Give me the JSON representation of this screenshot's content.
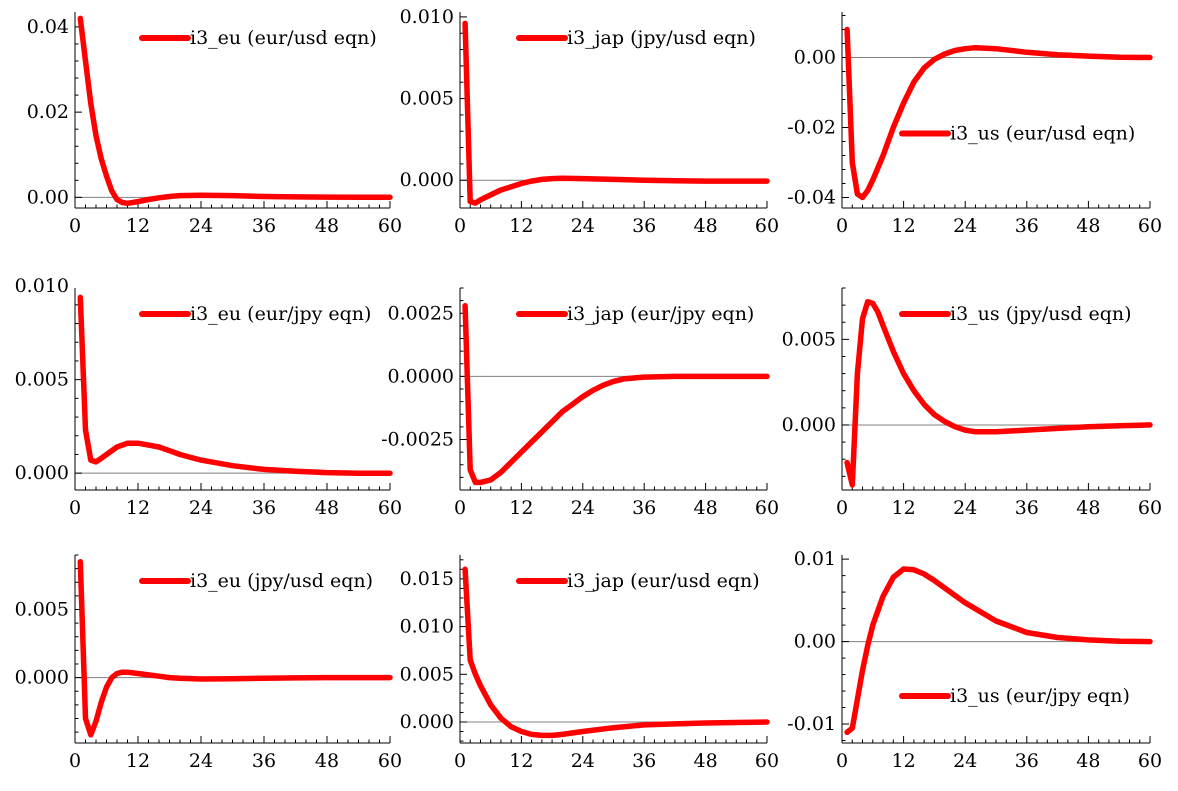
{
  "figure": {
    "series_color": "#ff0000",
    "zero_line_color": "#808080"
  },
  "chart_data": [
    {
      "type": "line",
      "panel_row": 1,
      "panel_col": 1,
      "series": [
        {
          "name": "i3_eu (eur/usd eqn)",
          "x": [
            1,
            2,
            3,
            4,
            5,
            6,
            7,
            8,
            9,
            10,
            12,
            14,
            16,
            18,
            20,
            24,
            30,
            36,
            42,
            48,
            54,
            60
          ],
          "y": [
            0.042,
            0.032,
            0.022,
            0.0145,
            0.009,
            0.005,
            0.0015,
            -0.0005,
            -0.0012,
            -0.0014,
            -0.001,
            -0.0005,
            -0.0001,
            0.0002,
            0.0004,
            0.0005,
            0.0004,
            0.0002,
            0.0001,
            5e-05,
            0.0,
            0.0
          ]
        }
      ],
      "xlim": [
        0,
        60
      ],
      "ylim": [
        -0.0025,
        0.0435
      ],
      "xticks": [
        0,
        12,
        24,
        36,
        48,
        60
      ],
      "xtick_labels": [
        "0",
        "12",
        "24",
        "36",
        "48",
        "60"
      ],
      "yticks": [
        0.0,
        0.02,
        0.04
      ],
      "ytick_labels": [
        "0.00",
        "0.02",
        "0.04"
      ],
      "zero_line": true,
      "legend_position": "top-right"
    },
    {
      "type": "line",
      "panel_row": 1,
      "panel_col": 2,
      "series": [
        {
          "name": "i3_jap (jpy/usd eqn)",
          "x": [
            1,
            2,
            3,
            4,
            6,
            8,
            10,
            12,
            14,
            16,
            18,
            20,
            24,
            30,
            36,
            42,
            48,
            54,
            60
          ],
          "y": [
            0.0096,
            -0.0013,
            -0.0014,
            -0.0012,
            -0.0009,
            -0.0006,
            -0.0004,
            -0.0002,
            -5e-05,
            5e-05,
            0.0001,
            0.00012,
            0.0001,
            5e-05,
            0.0,
            -3e-05,
            -5e-05,
            -5e-05,
            -5e-05
          ]
        }
      ],
      "xlim": [
        0,
        60
      ],
      "ylim": [
        -0.0017,
        0.0103
      ],
      "xticks": [
        0,
        12,
        24,
        36,
        48,
        60
      ],
      "xtick_labels": [
        "0",
        "12",
        "24",
        "36",
        "48",
        "60"
      ],
      "yticks": [
        0.0,
        0.005,
        0.01
      ],
      "ytick_labels": [
        "0.000",
        "0.005",
        "0.010"
      ],
      "zero_line": true,
      "legend_position": "top-right"
    },
    {
      "type": "line",
      "panel_row": 1,
      "panel_col": 3,
      "series": [
        {
          "name": "i3_us (eur/usd eqn)",
          "x": [
            1,
            2,
            3,
            4,
            5,
            6,
            8,
            10,
            12,
            14,
            16,
            18,
            20,
            22,
            24,
            26,
            30,
            36,
            42,
            48,
            54,
            60
          ],
          "y": [
            0.008,
            -0.03,
            -0.039,
            -0.04,
            -0.038,
            -0.035,
            -0.028,
            -0.02,
            -0.013,
            -0.007,
            -0.003,
            -0.0005,
            0.001,
            0.002,
            0.0025,
            0.0028,
            0.0025,
            0.0015,
            0.0008,
            0.0004,
            0.0001,
            0.0
          ]
        }
      ],
      "xlim": [
        0,
        60
      ],
      "ylim": [
        -0.043,
        0.013
      ],
      "xticks": [
        0,
        12,
        24,
        36,
        48,
        60
      ],
      "xtick_labels": [
        "0",
        "12",
        "24",
        "36",
        "48",
        "60"
      ],
      "yticks": [
        -0.04,
        -0.02,
        0.0
      ],
      "ytick_labels": [
        "-0.04",
        "-0.02",
        "0.00"
      ],
      "zero_line": true,
      "legend_position": "middle-right"
    },
    {
      "type": "line",
      "panel_row": 2,
      "panel_col": 1,
      "series": [
        {
          "name": "i3_eu (eur/jpy eqn)",
          "x": [
            1,
            2,
            3,
            4,
            5,
            6,
            8,
            10,
            12,
            14,
            16,
            18,
            20,
            24,
            30,
            36,
            42,
            48,
            54,
            60
          ],
          "y": [
            0.0094,
            0.0023,
            0.0007,
            0.0006,
            0.0008,
            0.001,
            0.0014,
            0.0016,
            0.0016,
            0.0015,
            0.0014,
            0.0012,
            0.001,
            0.0007,
            0.0004,
            0.0002,
            0.0001,
            3e-05,
            0.0,
            0.0
          ]
        }
      ],
      "xlim": [
        0,
        60
      ],
      "ylim": [
        -0.0009,
        0.0099
      ],
      "xticks": [
        0,
        12,
        24,
        36,
        48,
        60
      ],
      "xtick_labels": [
        "0",
        "12",
        "24",
        "36",
        "48",
        "60"
      ],
      "yticks": [
        0.0,
        0.005,
        0.01
      ],
      "ytick_labels": [
        "0.000",
        "0.005",
        "0.010"
      ],
      "zero_line": true,
      "legend_position": "top-right"
    },
    {
      "type": "line",
      "panel_row": 2,
      "panel_col": 2,
      "series": [
        {
          "name": "i3_jap (eur/jpy eqn)",
          "x": [
            1,
            2,
            3,
            4,
            6,
            8,
            10,
            12,
            14,
            16,
            18,
            20,
            22,
            24,
            26,
            28,
            30,
            32,
            36,
            42,
            48,
            54,
            60
          ],
          "y": [
            0.0028,
            -0.0037,
            -0.0042,
            -0.0042,
            -0.0041,
            -0.0038,
            -0.0034,
            -0.003,
            -0.0026,
            -0.0022,
            -0.0018,
            -0.0014,
            -0.0011,
            -0.0008,
            -0.00055,
            -0.00035,
            -0.0002,
            -0.0001,
            -3e-05,
            0.0,
            0.0,
            0.0,
            0.0
          ]
        }
      ],
      "xlim": [
        0,
        60
      ],
      "ylim": [
        -0.0045,
        0.0035
      ],
      "xticks": [
        0,
        12,
        24,
        36,
        48,
        60
      ],
      "xtick_labels": [
        "0",
        "12",
        "24",
        "36",
        "48",
        "60"
      ],
      "yticks": [
        -0.0025,
        0.0,
        0.0025
      ],
      "ytick_labels": [
        "-0.0025",
        "0.0000",
        "0.0025"
      ],
      "zero_line": true,
      "legend_position": "top-right"
    },
    {
      "type": "line",
      "panel_row": 2,
      "panel_col": 3,
      "series": [
        {
          "name": "i3_us (jpy/usd eqn)",
          "x": [
            1,
            2,
            3,
            4,
            5,
            6,
            7,
            8,
            10,
            12,
            14,
            16,
            18,
            20,
            22,
            24,
            26,
            30,
            36,
            42,
            48,
            54,
            60
          ],
          "y": [
            -0.0022,
            -0.0035,
            0.003,
            0.0062,
            0.0072,
            0.0071,
            0.0066,
            0.0058,
            0.0043,
            0.003,
            0.002,
            0.0012,
            0.0006,
            0.0002,
            -0.0001,
            -0.0003,
            -0.0004,
            -0.0004,
            -0.0003,
            -0.0002,
            -0.0001,
            -5e-05,
            0.0
          ]
        }
      ],
      "xlim": [
        0,
        60
      ],
      "ylim": [
        -0.0038,
        0.008
      ],
      "xticks": [
        0,
        12,
        24,
        36,
        48,
        60
      ],
      "xtick_labels": [
        "0",
        "12",
        "24",
        "36",
        "48",
        "60"
      ],
      "yticks": [
        0.0,
        0.005
      ],
      "ytick_labels": [
        "0.000",
        "0.005"
      ],
      "zero_line": true,
      "legend_position": "top-right"
    },
    {
      "type": "line",
      "panel_row": 3,
      "panel_col": 1,
      "series": [
        {
          "name": "i3_eu (jpy/usd eqn)",
          "x": [
            1,
            2,
            3,
            4,
            5,
            6,
            7,
            8,
            9,
            10,
            12,
            14,
            16,
            18,
            20,
            24,
            30,
            36,
            42,
            48,
            54,
            60
          ],
          "y": [
            0.0085,
            -0.003,
            -0.0042,
            -0.0032,
            -0.0018,
            -0.0007,
            0.0,
            0.0003,
            0.0004,
            0.0004,
            0.0003,
            0.0002,
            0.0001,
            0.0,
            -5e-05,
            -0.0001,
            -8e-05,
            -5e-05,
            -2e-05,
            0.0,
            0.0,
            0.0
          ]
        }
      ],
      "xlim": [
        0,
        60
      ],
      "ylim": [
        -0.0048,
        0.009
      ],
      "xticks": [
        0,
        12,
        24,
        36,
        48,
        60
      ],
      "xtick_labels": [
        "0",
        "12",
        "24",
        "36",
        "48",
        "60"
      ],
      "yticks": [
        0.0,
        0.005
      ],
      "ytick_labels": [
        "0.000",
        "0.005"
      ],
      "zero_line": true,
      "legend_position": "top-right"
    },
    {
      "type": "line",
      "panel_row": 3,
      "panel_col": 2,
      "series": [
        {
          "name": "i3_jap (eur/usd eqn)",
          "x": [
            1,
            2,
            3,
            4,
            6,
            8,
            10,
            12,
            14,
            16,
            18,
            20,
            24,
            30,
            36,
            42,
            48,
            54,
            60
          ],
          "y": [
            0.016,
            0.0065,
            0.005,
            0.0038,
            0.0018,
            0.0004,
            -0.0005,
            -0.001,
            -0.0013,
            -0.0014,
            -0.0014,
            -0.0013,
            -0.001,
            -0.0006,
            -0.0003,
            -0.0002,
            -0.0001,
            -5e-05,
            0.0
          ]
        }
      ],
      "xlim": [
        0,
        60
      ],
      "ylim": [
        -0.0022,
        0.0175
      ],
      "xticks": [
        0,
        12,
        24,
        36,
        48,
        60
      ],
      "xtick_labels": [
        "0",
        "12",
        "24",
        "36",
        "48",
        "60"
      ],
      "yticks": [
        0.0,
        0.005,
        0.01,
        0.015
      ],
      "ytick_labels": [
        "0.000",
        "0.005",
        "0.010",
        "0.015"
      ],
      "zero_line": true,
      "legend_position": "top-right"
    },
    {
      "type": "line",
      "panel_row": 3,
      "panel_col": 3,
      "series": [
        {
          "name": "i3_us (eur/jpy eqn)",
          "x": [
            1,
            2,
            3,
            4,
            5,
            6,
            8,
            10,
            12,
            14,
            16,
            18,
            20,
            24,
            30,
            36,
            42,
            48,
            54,
            60
          ],
          "y": [
            -0.011,
            -0.0105,
            -0.007,
            -0.0035,
            -0.0005,
            0.002,
            0.0055,
            0.0078,
            0.0088,
            0.0087,
            0.0082,
            0.0074,
            0.0065,
            0.0047,
            0.0025,
            0.0011,
            0.0005,
            0.0002,
            5e-05,
            0.0
          ]
        }
      ],
      "xlim": [
        0,
        60
      ],
      "ylim": [
        -0.0123,
        0.0105
      ],
      "xticks": [
        0,
        12,
        24,
        36,
        48,
        60
      ],
      "xtick_labels": [
        "0",
        "12",
        "24",
        "36",
        "48",
        "60"
      ],
      "yticks": [
        -0.01,
        0.0,
        0.01
      ],
      "ytick_labels": [
        "-0.01",
        "0.00",
        "0.01"
      ],
      "zero_line": true,
      "legend_position": "bottom-right"
    }
  ]
}
